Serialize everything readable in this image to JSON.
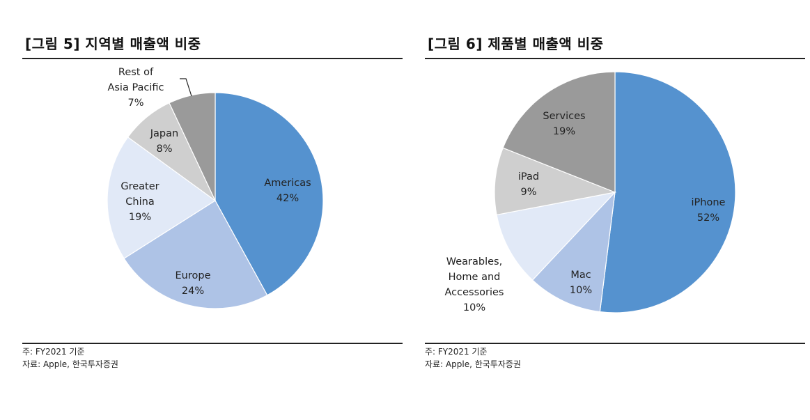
{
  "chart_data": [
    {
      "type": "pie",
      "title": "[그림 5] 지역별 매출액 비중",
      "categories": [
        "Americas",
        "Europe",
        "Greater China",
        "Japan",
        "Rest of Asia Pacific"
      ],
      "values": [
        42,
        24,
        19,
        8,
        7
      ],
      "unit": "%",
      "slice_labels": [
        [
          "Americas",
          "42%"
        ],
        [
          "Europe",
          "24%"
        ],
        [
          "Greater",
          "China",
          "19%"
        ],
        [
          "Japan",
          "8%"
        ],
        [
          "Rest of",
          "Asia Pacific",
          "7%"
        ]
      ],
      "colors": [
        "#5592cf",
        "#aec3e6",
        "#e1e9f7",
        "#cfcfcf",
        "#9a9a9a"
      ],
      "start": "12 o'clock, clockwise",
      "note": "주: FY2021 기준",
      "source": "자료: Apple, 한국투자증권"
    },
    {
      "type": "pie",
      "title": "[그림 6] 제품별 매출액 비중",
      "categories": [
        "iPhone",
        "Mac",
        "Wearables, Home and Accessories",
        "iPad",
        "Services"
      ],
      "values": [
        52,
        10,
        10,
        9,
        19
      ],
      "unit": "%",
      "slice_labels": [
        [
          "iPhone",
          "52%"
        ],
        [
          "Mac",
          "10%"
        ],
        [
          "Wearables,",
          "Home and",
          "Accessories",
          "10%"
        ],
        [
          "iPad",
          "9%"
        ],
        [
          "Services",
          "19%"
        ]
      ],
      "colors": [
        "#5592cf",
        "#aec3e6",
        "#e1e9f7",
        "#cfcfcf",
        "#9a9a9a"
      ],
      "start": "12 o'clock, clockwise",
      "note": "주: FY2021 기준",
      "source": "자료: Apple, 한국투자증권"
    }
  ]
}
